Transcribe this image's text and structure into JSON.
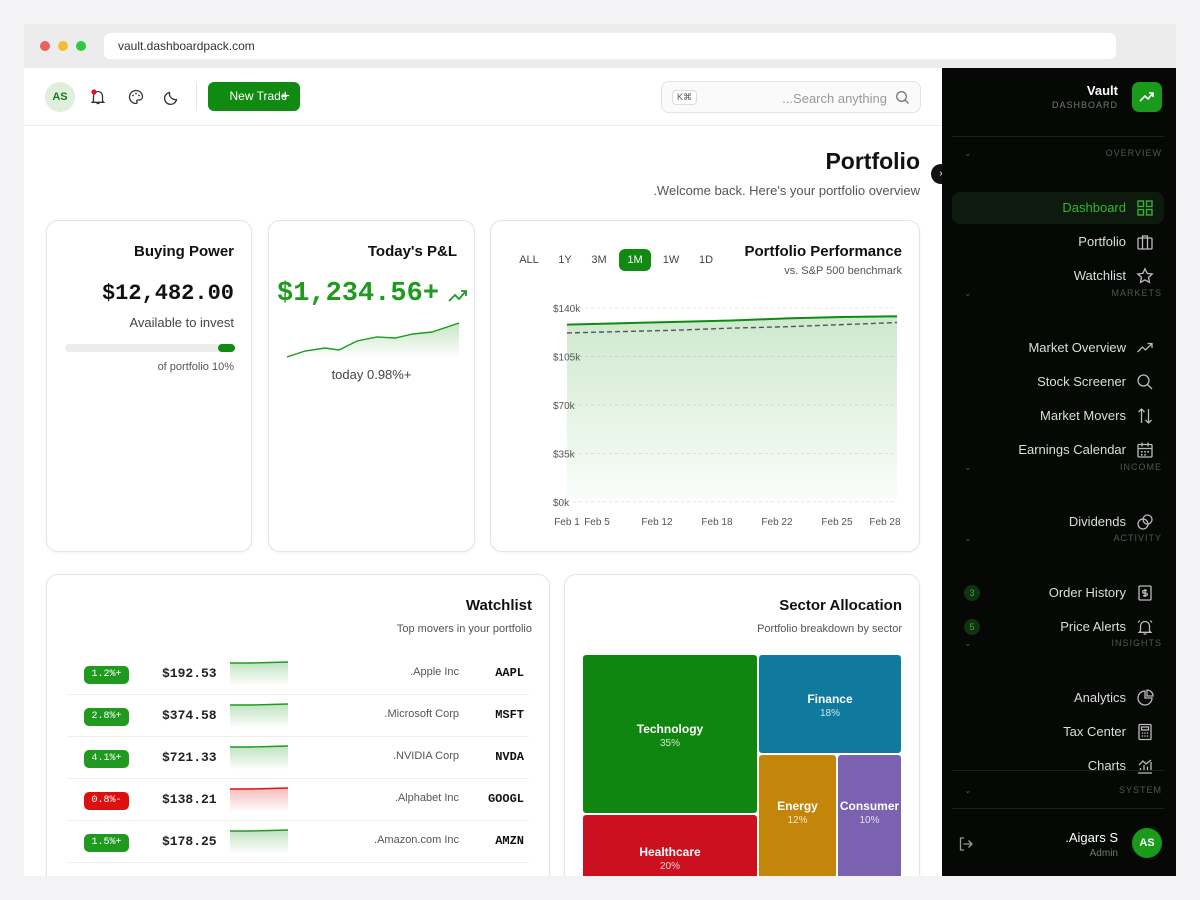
{
  "browser": {
    "url": "vault.dashboardpack.com"
  },
  "topbar": {
    "avatar_initials": "AS",
    "new_trade_label": "New Trade",
    "search_shortcut": "K⌘",
    "search_placeholder": "...Search anything"
  },
  "page": {
    "title": "Portfolio",
    "subtitle": ".Welcome back. Here's your portfolio overview"
  },
  "buying_power": {
    "title": "Buying Power",
    "value": "$12,482.00",
    "caption": "Available to invest",
    "progress_fraction": 0.1,
    "progress_label": "of portfolio 10%"
  },
  "pnl": {
    "title": "Today's P&L",
    "value": "$1,234.56+",
    "caption": "today 0.98%+"
  },
  "performance": {
    "title": "Portfolio Performance",
    "subtitle": "vs. S&P 500 benchmark",
    "ranges": [
      "ALL",
      "1Y",
      "3M",
      "1M",
      "1W",
      "1D"
    ],
    "active_range": "1M"
  },
  "chart_data": {
    "type": "area",
    "x": [
      "Feb 1",
      "Feb 5",
      "Feb 12",
      "Feb 18",
      "Feb 22",
      "Feb 25",
      "Feb 28"
    ],
    "series": [
      {
        "values": [
          128000,
          129000,
          130000,
          131000,
          132500,
          133500,
          134000
        ]
      },
      {
        "values": [
          122000,
          123000,
          124000,
          125500,
          126500,
          128000,
          129500
        ]
      }
    ],
    "y_ticks": [
      "$0k",
      "$35k",
      "$70k",
      "$105k",
      "$140k"
    ],
    "ylim": [
      0,
      140000
    ],
    "grid": true
  },
  "watchlist": {
    "title": "Watchlist",
    "subtitle": "Top movers in your portfolio",
    "rows": [
      {
        "pct": "1.2%+",
        "price": "$192.53",
        "name": ".Apple Inc",
        "ticker": "AAPL",
        "up": true
      },
      {
        "pct": "2.8%+",
        "price": "$374.58",
        "name": ".Microsoft Corp",
        "ticker": "MSFT",
        "up": true
      },
      {
        "pct": "4.1%+",
        "price": "$721.33",
        "name": ".NVIDIA Corp",
        "ticker": "NVDA",
        "up": true
      },
      {
        "pct": "0.8%-",
        "price": "$138.21",
        "name": ".Alphabet Inc",
        "ticker": "GOOGL",
        "up": false
      },
      {
        "pct": "1.5%+",
        "price": "$178.25",
        "name": ".Amazon.com Inc",
        "ticker": "AMZN",
        "up": true
      }
    ]
  },
  "sectors": {
    "title": "Sector Allocation",
    "subtitle": "Portfolio breakdown by sector",
    "tiles": [
      {
        "name": "Technology",
        "value": "35%",
        "color": "#0f860f"
      },
      {
        "name": "Finance",
        "value": "18%",
        "color": "#0f7a9e"
      },
      {
        "name": "Energy",
        "value": "12%",
        "color": "#c4860a"
      },
      {
        "name": "Consumer",
        "value": "10%",
        "color": "#7a62b0"
      },
      {
        "name": "Healthcare",
        "value": "20%",
        "color": "#cc1020"
      }
    ]
  },
  "sidebar": {
    "brand": "Vault",
    "brand_sub": "DASHBOARD",
    "sections": {
      "overview": "OVERVIEW",
      "markets": "MARKETS",
      "income": "INCOME",
      "activity": "ACTIVITY",
      "insights": "INSIGHTS",
      "system": "SYSTEM"
    },
    "items": {
      "dashboard": "Dashboard",
      "portfolio": "Portfolio",
      "watchlist": "Watchlist",
      "market_overview": "Market Overview",
      "stock_screener": "Stock Screener",
      "market_movers": "Market Movers",
      "earnings_calendar": "Earnings Calendar",
      "dividends": "Dividends",
      "order_history": "Order History",
      "order_history_badge": "3",
      "price_alerts": "Price Alerts",
      "price_alerts_badge": "5",
      "analytics": "Analytics",
      "tax_center": "Tax Center",
      "charts": "Charts"
    },
    "user": {
      "name": ".Aigars S",
      "role": "Admin",
      "initials": "AS"
    }
  },
  "colors": {
    "accent": "#108a10",
    "up": "#1f9a1f",
    "down": "#dd1010",
    "sidebar_bg": "#050805"
  }
}
